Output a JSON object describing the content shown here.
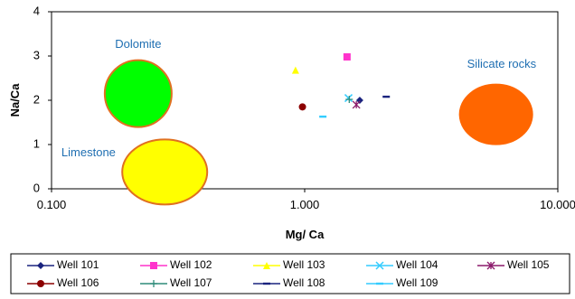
{
  "chart_data": {
    "type": "scatter",
    "title": "",
    "xlabel": "Mg/ Ca",
    "ylabel": "Na/Ca",
    "x_scale": "log",
    "xlim": [
      0.1,
      10
    ],
    "ylim": [
      0,
      4
    ],
    "x_ticks": [
      "0.100",
      "1.000",
      "10.000"
    ],
    "y_ticks": [
      "0",
      "1",
      "2",
      "3",
      "4"
    ],
    "grid": false,
    "legend_position": "bottom",
    "series": [
      {
        "name": "Well 101",
        "color": "#1a237e",
        "marker": "diamond",
        "x": 1.65,
        "y": 2.0
      },
      {
        "name": "Well 102",
        "color": "#ff33cc",
        "marker": "square",
        "x": 1.47,
        "y": 2.98
      },
      {
        "name": "Well 103",
        "color": "#ffff00",
        "marker": "triangle",
        "x": 0.92,
        "y": 2.68
      },
      {
        "name": "Well 104",
        "color": "#33ccff",
        "marker": "x",
        "x": 1.49,
        "y": 2.05
      },
      {
        "name": "Well 105",
        "color": "#8b1a6b",
        "marker": "star",
        "x": 1.6,
        "y": 1.9
      },
      {
        "name": "Well 106",
        "color": "#8b0000",
        "marker": "circle",
        "x": 0.98,
        "y": 1.85
      },
      {
        "name": "Well 107",
        "color": "#2e8b7a",
        "marker": "plus",
        "x": 1.5,
        "y": 2.02
      },
      {
        "name": "Well 108",
        "color": "#1a237e",
        "marker": "dash",
        "x": 2.1,
        "y": 2.08
      },
      {
        "name": "Well 109",
        "color": "#33ccff",
        "marker": "dash",
        "x": 1.18,
        "y": 1.63
      }
    ],
    "regions": [
      {
        "label": "Dolomite",
        "fill": "#00ff00",
        "stroke": "#e07020",
        "cx": 0.22,
        "cy": 2.15,
        "label_x": 0.22,
        "label_y": 3.25
      },
      {
        "label": "Limestone",
        "fill": "#ffff00",
        "stroke": "#e07020",
        "cx": 0.28,
        "cy": 0.38,
        "label_x": 0.14,
        "label_y": 0.8
      },
      {
        "label": "Silicate rocks",
        "fill": "#ff6600",
        "stroke": "#ff6600",
        "cx": 5.7,
        "cy": 1.68,
        "label_x": 6.0,
        "label_y": 2.8
      }
    ]
  }
}
